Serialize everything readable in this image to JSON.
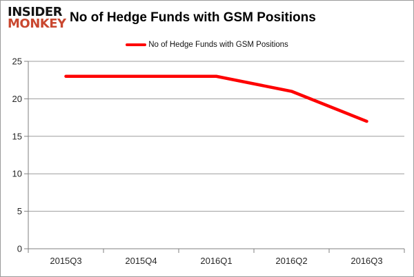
{
  "logo": {
    "line1": "INSIDER",
    "line2": "MONKEY"
  },
  "title": "No of Hedge Funds with GSM Positions",
  "legend": {
    "label": "No of Hedge Funds with GSM Positions",
    "color": "#fe0000"
  },
  "chart_data": {
    "type": "line",
    "title": "No of Hedge Funds with GSM Positions",
    "categories": [
      "2015Q3",
      "2015Q4",
      "2016Q1",
      "2016Q2",
      "2016Q3"
    ],
    "series": [
      {
        "name": "No of Hedge Funds with GSM Positions",
        "values": [
          23,
          23,
          23,
          21,
          17
        ],
        "color": "#fe0000"
      }
    ],
    "xlabel": "",
    "ylabel": "",
    "ylim": [
      0,
      25
    ],
    "yticks": [
      0,
      5,
      10,
      15,
      20,
      25
    ],
    "grid": true,
    "legend_position": "top"
  },
  "colors": {
    "grid_line": "#9b9b9b",
    "axis_line": "#7f7f7f",
    "tick_label": "#262626",
    "series_line": "#fe0000",
    "frame_border": "#9a9a9a"
  }
}
